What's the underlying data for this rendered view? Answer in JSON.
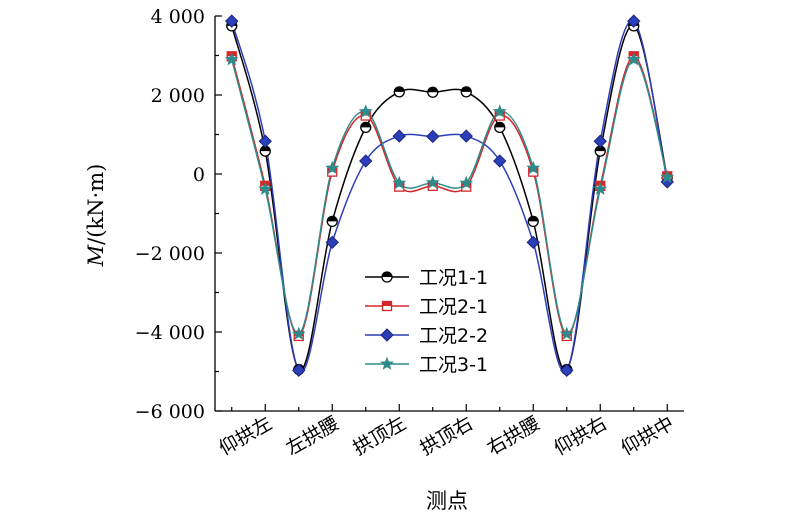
{
  "chart_data": {
    "type": "line",
    "xlabel": "测点",
    "ylabel": "M/(kN·m)",
    "ylabel_var": "M",
    "ylabel_unit": "/(kN·m)",
    "ylim": [
      -6000,
      4000
    ],
    "yticks": [
      -6000,
      -4000,
      -2000,
      0,
      2000,
      4000
    ],
    "ytick_labels": [
      "−6 000",
      "−4 000",
      "−2 000",
      "0",
      "2 000",
      "4 000"
    ],
    "xlim": [
      0.5,
      14.5
    ],
    "categories": [
      "仰拱左",
      "左拱腰",
      "拱顶左",
      "拱顶右",
      "右拱腰",
      "仰拱右",
      "仰拱中"
    ],
    "category_positions": [
      2,
      4,
      6,
      8,
      10,
      12,
      14
    ],
    "x": [
      1,
      2,
      3,
      4,
      5,
      6,
      7,
      8,
      9,
      10,
      11,
      12,
      13,
      14
    ],
    "legend_position": "center",
    "grid": false,
    "series": [
      {
        "name": "工况1-1",
        "color": "#000000",
        "marker": "circle",
        "values": [
          3750,
          580,
          -4950,
          -1200,
          1180,
          2080,
          2070,
          2080,
          1180,
          -1200,
          -4950,
          580,
          3750,
          -100
        ]
      },
      {
        "name": "工况2-1",
        "color": "#d62728",
        "marker": "square",
        "values": [
          2980,
          -300,
          -4100,
          60,
          1480,
          -320,
          -300,
          -320,
          1480,
          60,
          -4100,
          -300,
          2980,
          -60
        ]
      },
      {
        "name": "工况2-2",
        "color": "#2c3fb8",
        "marker": "diamond",
        "values": [
          3870,
          830,
          -4970,
          -1730,
          330,
          960,
          950,
          960,
          330,
          -1730,
          -4970,
          830,
          3870,
          -200
        ]
      },
      {
        "name": "工况3-1",
        "color": "#2e8b8b",
        "marker": "star",
        "values": [
          2900,
          -380,
          -4050,
          150,
          1580,
          -230,
          -220,
          -230,
          1580,
          150,
          -4050,
          -380,
          2900,
          -80
        ]
      }
    ]
  }
}
